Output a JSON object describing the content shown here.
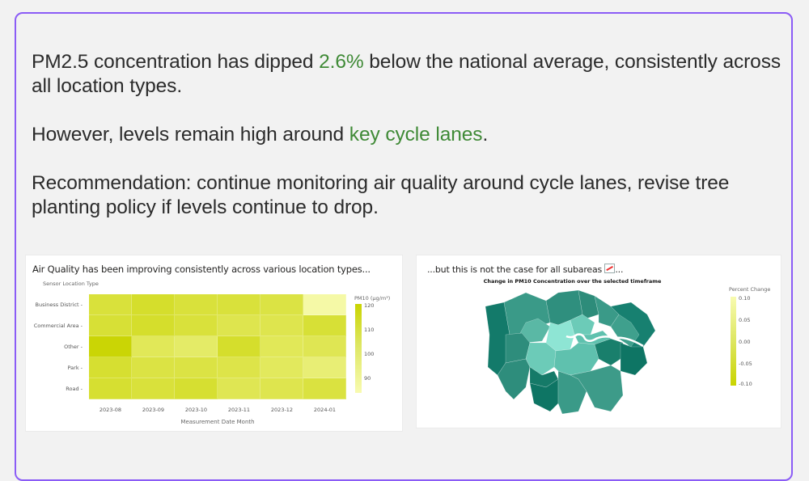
{
  "narrative": {
    "p1_before": "PM2.5 concentration has dipped ",
    "p1_highlight": "2.6%",
    "p1_after": " below the national average, consistently across all location types.",
    "p2_before": "However, levels remain high around ",
    "p2_highlight": "key cycle lanes",
    "p2_after": ".",
    "p3": "Recommendation: continue monitoring air quality around cycle lanes, revise tree planting policy if levels continue to drop."
  },
  "colors": {
    "frame_border": "#8b5cf6",
    "highlight_text": "#3f8a36",
    "background": "#f2f2f2"
  },
  "heatmap_card": {
    "title": "Air Quality has been improving consistently across various location types...",
    "y_axis_title": "Sensor Location Type",
    "x_axis_title": "Measurement Date Month",
    "legend_title": "PM10 (μg/m³)",
    "legend_ticks": [
      "120",
      "110",
      "100",
      "90"
    ]
  },
  "map_card": {
    "title": "...but this is not the case for all subareas",
    "title_suffix": "...",
    "emoji_icon": "chart-increasing-icon",
    "subtitle": "Change in PM10 Concentration over the selected timeframe",
    "legend_title": "Percent Change",
    "legend_ticks": [
      "0.10",
      "0.05",
      "0.00",
      "-0.05",
      "-0.10"
    ]
  },
  "chart_data": [
    {
      "type": "heatmap",
      "title": "Air Quality has been improving consistently across various location types...",
      "xlabel": "Measurement Date Month",
      "ylabel": "Sensor Location Type",
      "x": [
        "2023-08",
        "2023-09",
        "2023-10",
        "2023-11",
        "2023-12",
        "2024-01"
      ],
      "y": [
        "Business District",
        "Commercial Area",
        "Other",
        "Park",
        "Road"
      ],
      "colorbar": {
        "title": "PM10 (μg/m³)",
        "range": [
          86,
          122
        ],
        "ticks": [
          90,
          100,
          110,
          120
        ]
      },
      "values": [
        [
          110,
          113,
          110,
          110,
          108,
          88
        ],
        [
          111,
          113,
          110,
          106,
          106,
          111
        ],
        [
          121,
          104,
          101,
          113,
          104,
          105
        ],
        [
          112,
          108,
          108,
          107,
          103,
          98
        ],
        [
          112,
          110,
          112,
          105,
          106,
          109
        ]
      ]
    },
    {
      "type": "heatmap",
      "subtype": "choropleth",
      "title": "...but this is not the case for all subareas",
      "subtitle": "Change in PM10 Concentration over the selected timeframe",
      "colorbar": {
        "title": "Percent Change",
        "range": [
          -0.1,
          0.1
        ],
        "ticks": [
          0.1,
          0.05,
          0.0,
          -0.05,
          -0.1
        ]
      }
    }
  ]
}
